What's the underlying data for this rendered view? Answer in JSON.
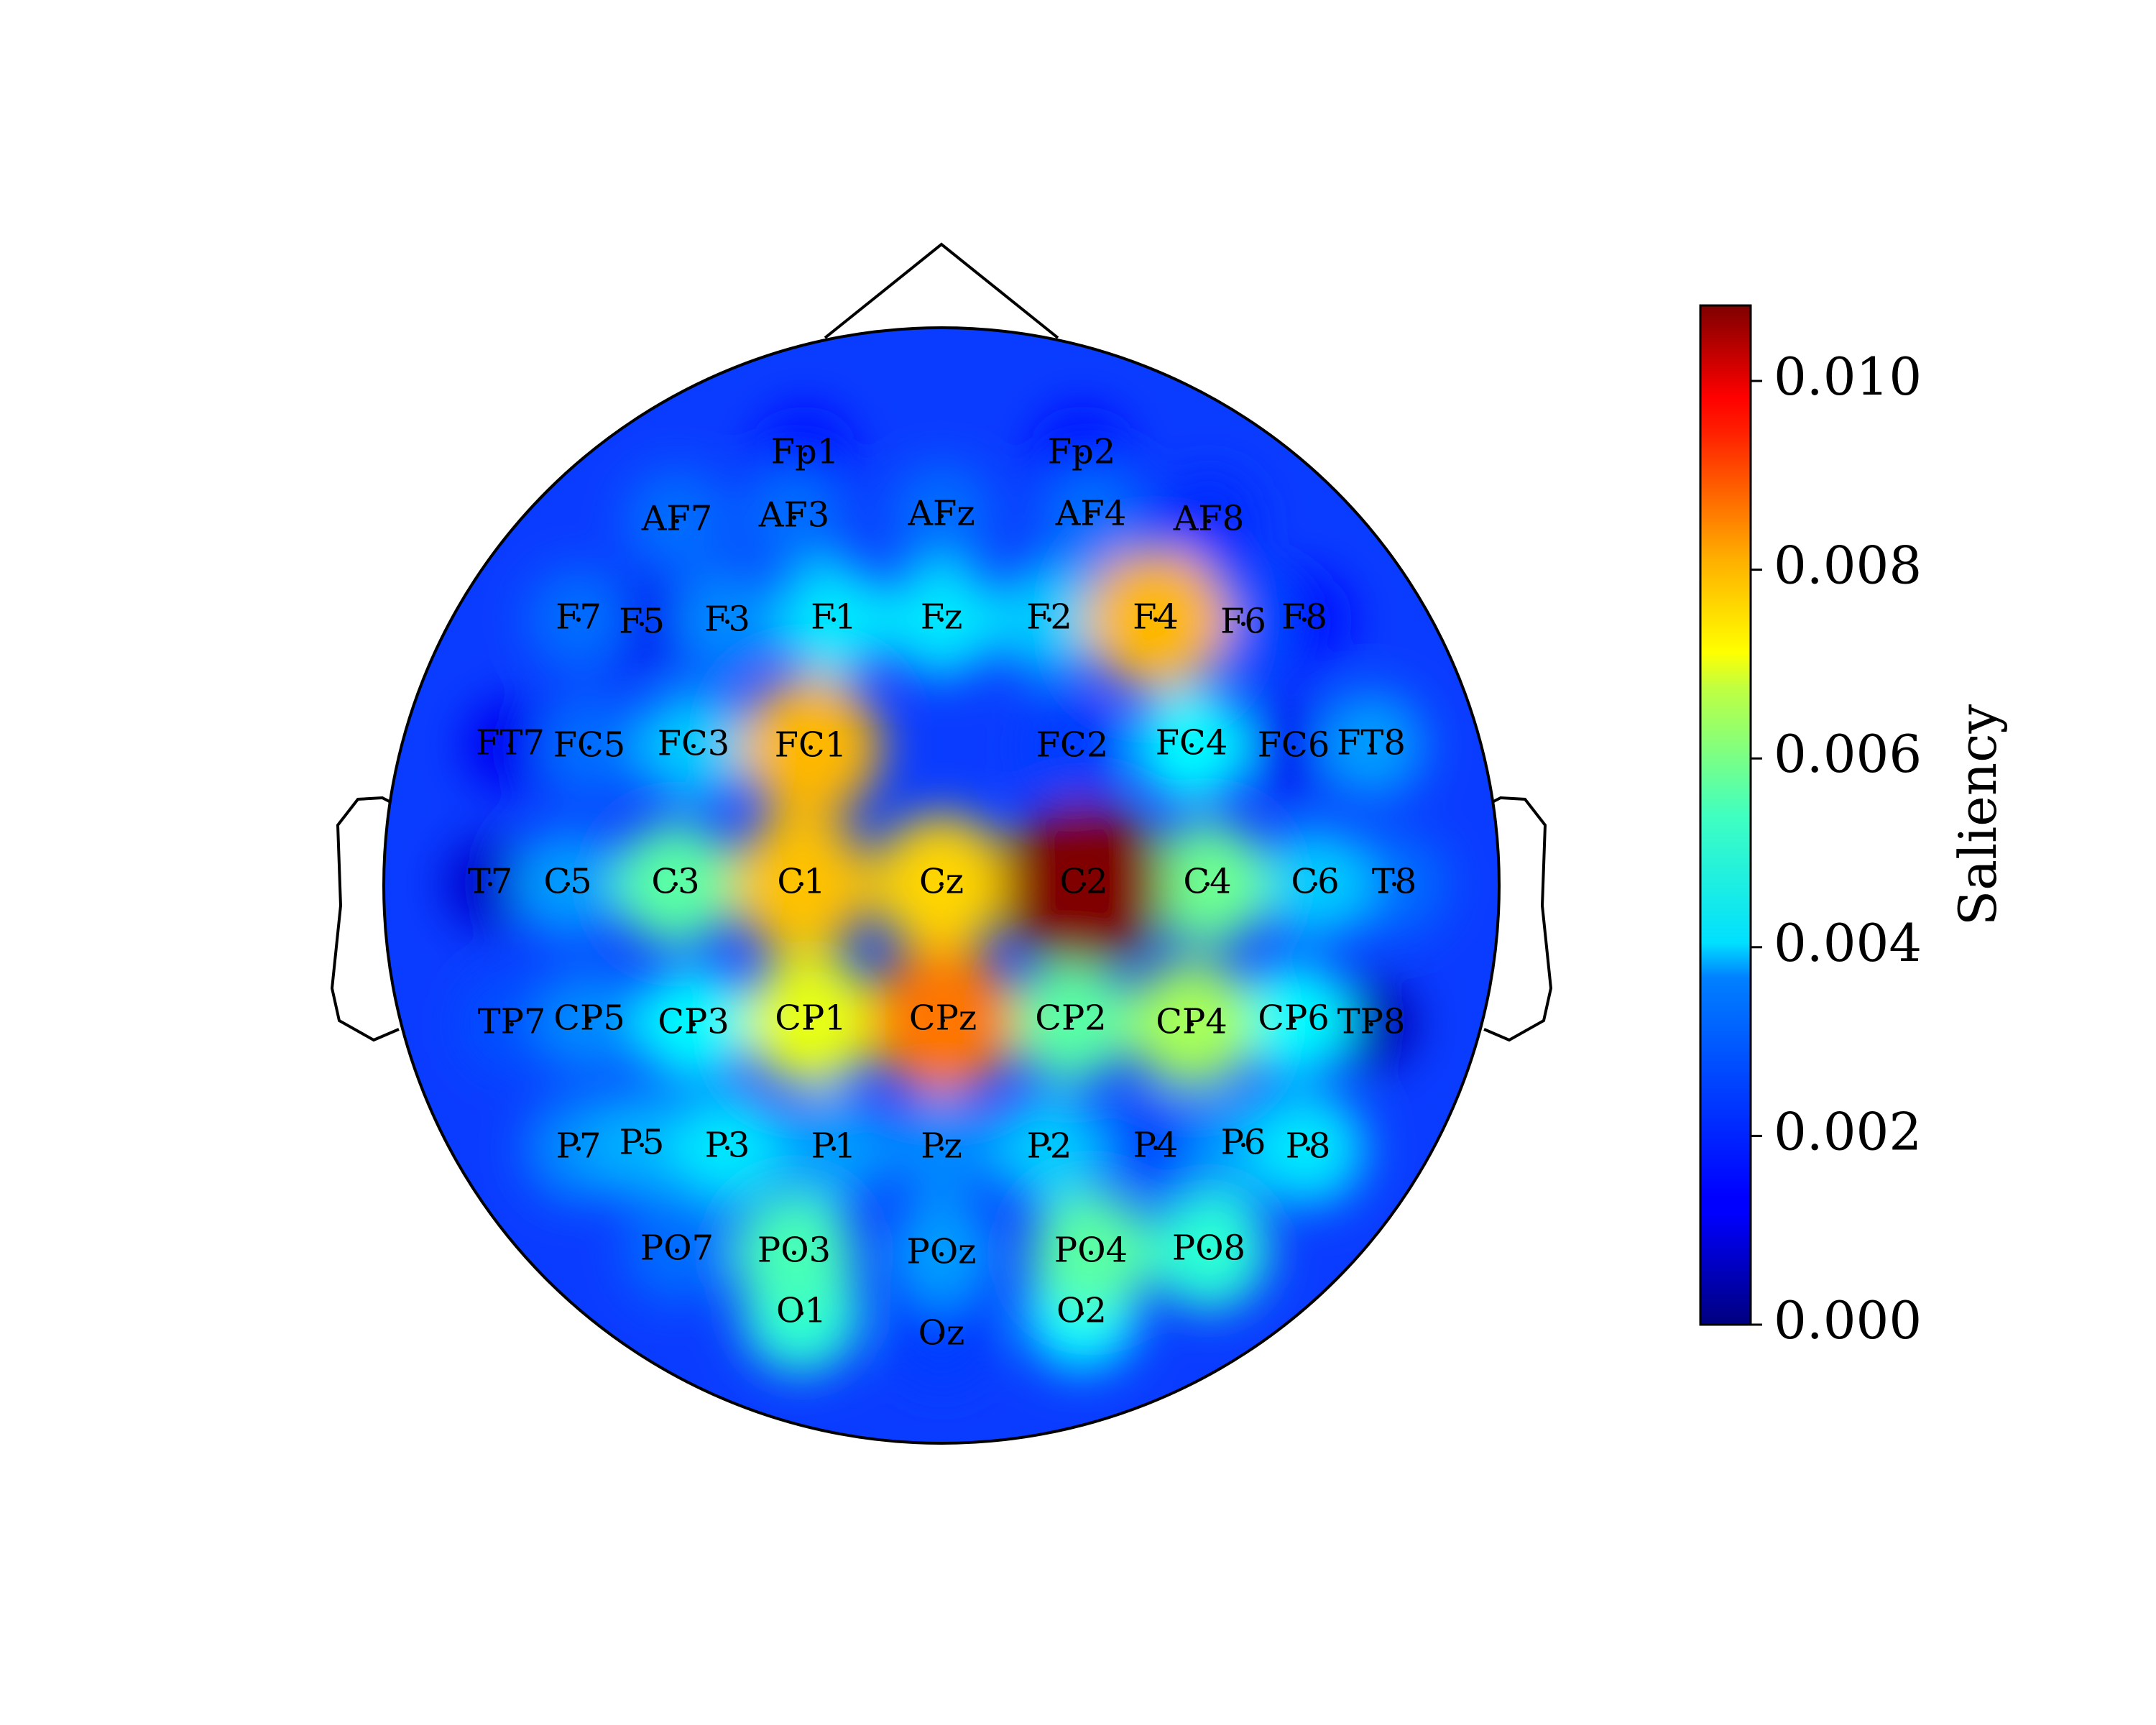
{
  "chart_data": {
    "type": "heatmap",
    "subtype": "eeg-topomap",
    "colormap": "jet",
    "colorbar": {
      "label": "Saliency",
      "vmin": 0.0,
      "vmax": 0.0108,
      "ticks": [
        0.0,
        0.002,
        0.004,
        0.006,
        0.008,
        0.01
      ],
      "tick_labels": [
        "0.000",
        "0.002",
        "0.004",
        "0.006",
        "0.008",
        "0.010"
      ],
      "placement": "right"
    },
    "electrodes": [
      {
        "name": "Fp1",
        "value": 0.0015
      },
      {
        "name": "Fp2",
        "value": 0.0015
      },
      {
        "name": "AF7",
        "value": 0.0025
      },
      {
        "name": "AF3",
        "value": 0.0025
      },
      {
        "name": "AFz",
        "value": 0.0025
      },
      {
        "name": "AF4",
        "value": 0.0025
      },
      {
        "name": "AF8",
        "value": 0.0018
      },
      {
        "name": "F7",
        "value": 0.0025
      },
      {
        "name": "F5",
        "value": 0.0012
      },
      {
        "name": "F3",
        "value": 0.0028
      },
      {
        "name": "F1",
        "value": 0.0038
      },
      {
        "name": "Fz",
        "value": 0.0038
      },
      {
        "name": "F2",
        "value": 0.0035
      },
      {
        "name": "F4",
        "value": 0.0075
      },
      {
        "name": "F6",
        "value": 0.0022
      },
      {
        "name": "F8",
        "value": 0.0015
      },
      {
        "name": "FT7",
        "value": 0.0012
      },
      {
        "name": "FC5",
        "value": 0.0025
      },
      {
        "name": "FC3",
        "value": 0.0035
      },
      {
        "name": "FC1",
        "value": 0.0075
      },
      {
        "name": "FC2",
        "value": 0.002
      },
      {
        "name": "FC4",
        "value": 0.004
      },
      {
        "name": "FC6",
        "value": 0.0012
      },
      {
        "name": "FT8",
        "value": 0.003
      },
      {
        "name": "T7",
        "value": 0.0008
      },
      {
        "name": "C5",
        "value": 0.003
      },
      {
        "name": "C3",
        "value": 0.005
      },
      {
        "name": "C1",
        "value": 0.0074
      },
      {
        "name": "Cz",
        "value": 0.0072
      },
      {
        "name": "C2",
        "value": 0.0108
      },
      {
        "name": "C4",
        "value": 0.0052
      },
      {
        "name": "C6",
        "value": 0.0035
      },
      {
        "name": "T8",
        "value": 0.0025
      },
      {
        "name": "TP7",
        "value": 0.0022
      },
      {
        "name": "CP5",
        "value": 0.0028
      },
      {
        "name": "CP3",
        "value": 0.004
      },
      {
        "name": "CP1",
        "value": 0.0065
      },
      {
        "name": "CPz",
        "value": 0.0082
      },
      {
        "name": "CP2",
        "value": 0.005
      },
      {
        "name": "CP4",
        "value": 0.0058
      },
      {
        "name": "CP6",
        "value": 0.004
      },
      {
        "name": "TP8",
        "value": 0.0005
      },
      {
        "name": "P7",
        "value": 0.0028
      },
      {
        "name": "P5",
        "value": 0.0032
      },
      {
        "name": "P3",
        "value": 0.0038
      },
      {
        "name": "P1",
        "value": 0.003
      },
      {
        "name": "Pz",
        "value": 0.0028
      },
      {
        "name": "P2",
        "value": 0.0035
      },
      {
        "name": "P4",
        "value": 0.0022
      },
      {
        "name": "P6",
        "value": 0.003
      },
      {
        "name": "P8",
        "value": 0.0038
      },
      {
        "name": "PO7",
        "value": 0.0025
      },
      {
        "name": "PO3",
        "value": 0.0048
      },
      {
        "name": "POz",
        "value": 0.003
      },
      {
        "name": "PO4",
        "value": 0.005
      },
      {
        "name": "PO8",
        "value": 0.0045
      },
      {
        "name": "O1",
        "value": 0.0045
      },
      {
        "name": "Oz",
        "value": 0.002
      },
      {
        "name": "O2",
        "value": 0.004
      }
    ]
  }
}
